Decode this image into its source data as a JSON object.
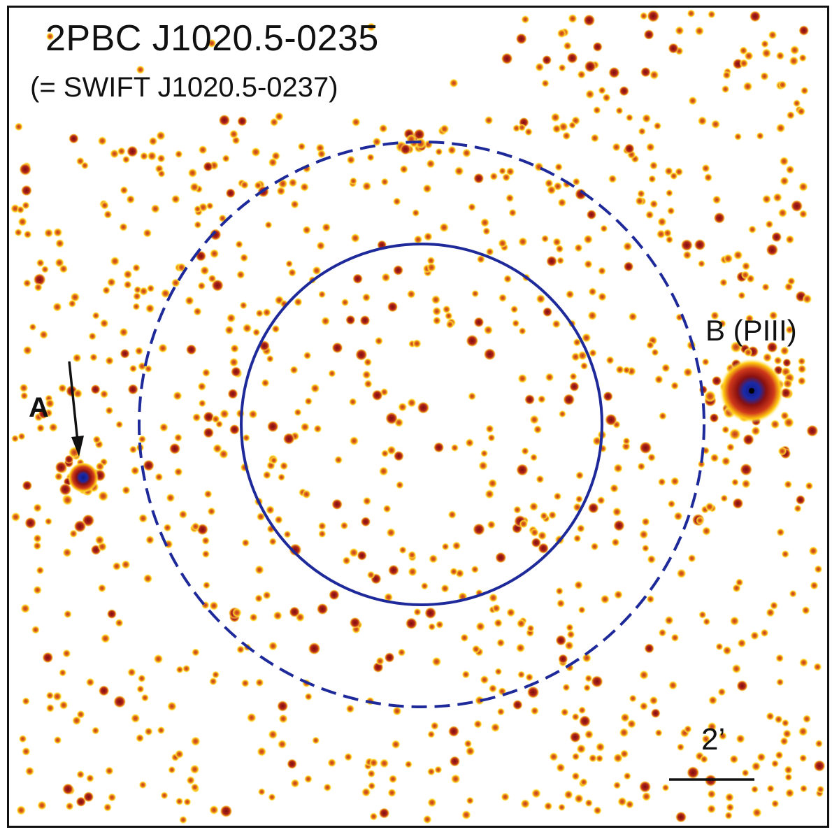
{
  "title": "2PBC J1020.5-0235",
  "subtitle": "(= SWIFT J1020.5-0237)",
  "source_a_label": "A",
  "source_b_label": "B (PIII)",
  "scale_bar_label": "2’",
  "colors": {
    "background": "#ffffff",
    "photon_halo": "#ffe000",
    "photon_core": "#c0391b",
    "bright_core": "#8a1010",
    "source_center": "#1a2aa8",
    "error_circle": "#1f2a9a",
    "frame": "#111111"
  }
}
